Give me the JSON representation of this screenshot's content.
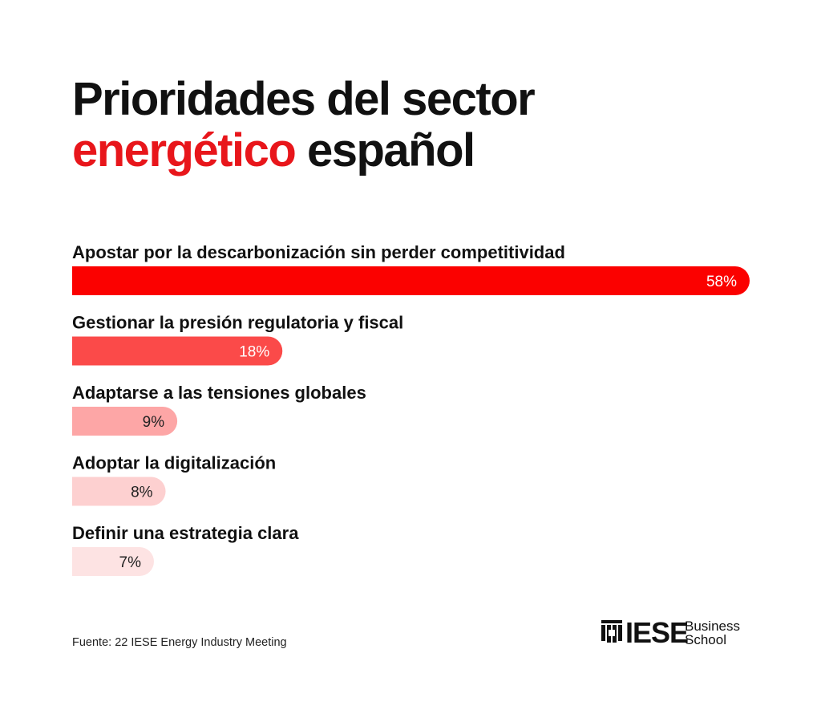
{
  "title": {
    "line1": "Prioridades del sector",
    "accent": "energético",
    "rest": " español"
  },
  "source": "Fuente: 22 IESE Energy Industry Meeting",
  "logo": {
    "name": "IESE",
    "line1": "Business",
    "line2": "School"
  },
  "colors": {
    "accent": "#e8161b"
  },
  "chart_data": {
    "type": "bar",
    "orientation": "horizontal",
    "categories": [
      "Apostar por la descarbonización sin perder competitividad",
      "Gestionar la presión regulatoria y fiscal",
      "Adaptarse a las tensiones globales",
      "Adoptar la digitalización",
      "Definir una estrategia clara"
    ],
    "values": [
      58,
      18,
      9,
      8,
      7
    ],
    "value_labels": [
      "58%",
      "18%",
      "9%",
      "8%",
      "7%"
    ],
    "unit": "%",
    "bar_colors": [
      "#fb0100",
      "#fb4a49",
      "#fda6a6",
      "#fdd0d0",
      "#fde3e3"
    ],
    "label_colors": [
      "#ffffff",
      "#ffffff",
      "#222222",
      "#222222",
      "#222222"
    ],
    "xlim": [
      0,
      58
    ],
    "grid": false,
    "legend": "none"
  }
}
